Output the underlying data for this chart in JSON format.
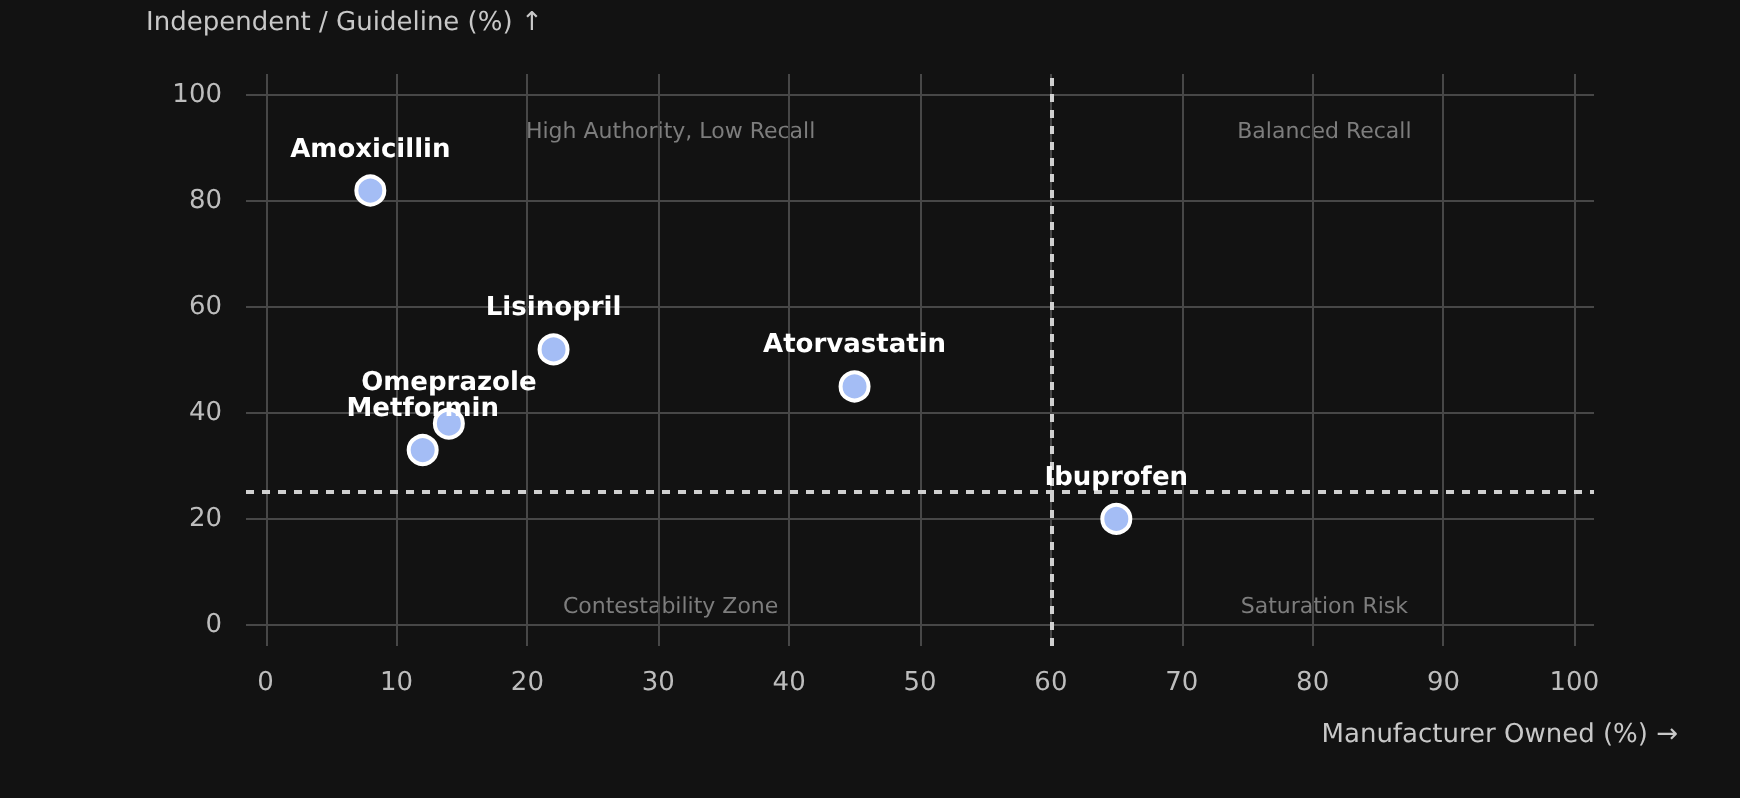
{
  "chart_data": {
    "type": "scatter",
    "xlabel": "Manufacturer Owned (%) →",
    "ylabel": "Independent / Guideline (%) ↑",
    "x": [
      8,
      22,
      45,
      14,
      12,
      65
    ],
    "series": [
      {
        "color": "#a4bdf5",
        "values": [
          82,
          52,
          45,
          38,
          33,
          20
        ],
        "value_labels": [
          "Amoxicillin",
          "Lisinopril",
          "Atorvastatin",
          "Omeprazole",
          "Metformin",
          "Ibuprofen"
        ]
      }
    ],
    "xlim": [
      -1.5,
      101.5
    ],
    "ylim": [
      -4,
      104
    ],
    "xticks": [
      0,
      10,
      20,
      30,
      40,
      50,
      60,
      70,
      80,
      90,
      100
    ],
    "yticks": [
      0,
      20,
      40,
      60,
      80,
      100
    ],
    "ref_lines": [
      {
        "axis": "x",
        "value": 60,
        "line_style": "dashed",
        "color": "#d0d0d0"
      },
      {
        "axis": "y",
        "value": 25,
        "line_style": "dashed",
        "color": "#d0d0d0"
      }
    ],
    "annotations": [
      "High Authority, Low Recall",
      "Balanced Recall",
      "Contestability Zone",
      "Saturation Risk"
    ],
    "grid": true,
    "marker": "circle"
  }
}
